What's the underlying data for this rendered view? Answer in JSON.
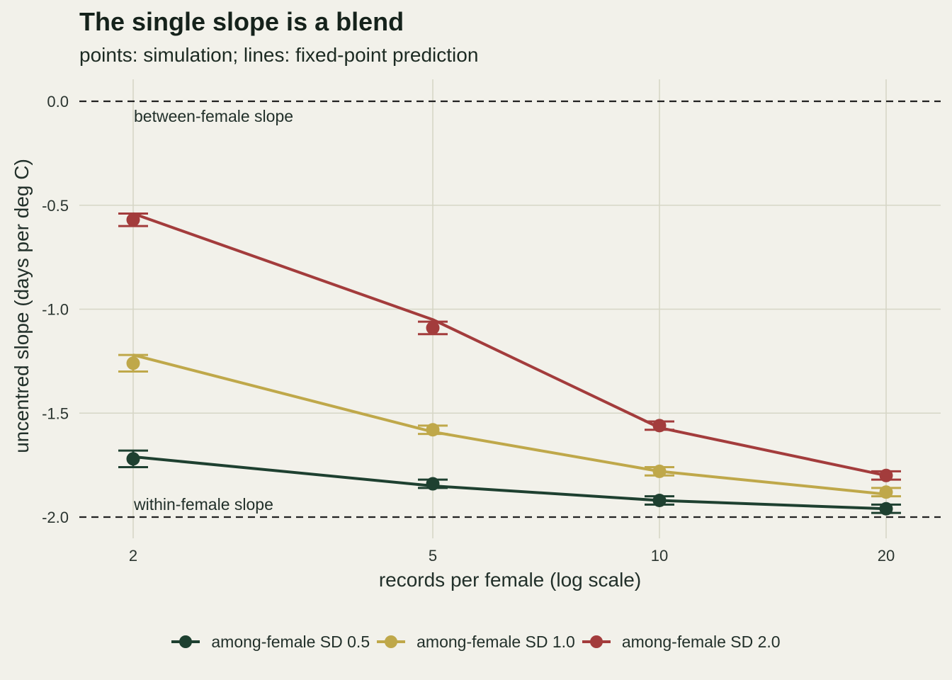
{
  "title": "The single slope is a blend",
  "subtitle": "points: simulation; lines: fixed-point prediction",
  "chart_data": {
    "type": "line",
    "xlabel": "records per female (log scale)",
    "ylabel": "uncentred slope (days per deg C)",
    "x_scale": "log",
    "x": [
      2,
      5,
      10,
      20
    ],
    "x_tick_labels": [
      "2",
      "5",
      "10",
      "20"
    ],
    "y_ticks": [
      0.0,
      -0.5,
      -1.0,
      -1.5,
      -2.0
    ],
    "y_tick_labels": [
      "0.0",
      "-0.5",
      "-1.0",
      "-1.5",
      "-2.0"
    ],
    "ylim": [
      -2.1,
      0.1
    ],
    "grid": true,
    "legend_position": "bottom",
    "reference_lines": [
      {
        "y": 0.0,
        "label": "between-female slope"
      },
      {
        "y": -2.0,
        "label": "within-female slope"
      }
    ],
    "series": [
      {
        "name": "among-female SD 0.5",
        "color": "#1e4030",
        "prediction": [
          -1.71,
          -1.85,
          -1.92,
          -1.96
        ],
        "simulation": [
          -1.72,
          -1.84,
          -1.92,
          -1.96
        ],
        "error": [
          0.04,
          0.02,
          0.02,
          0.02
        ]
      },
      {
        "name": "among-female SD 1.0",
        "color": "#bfa84a",
        "prediction": [
          -1.22,
          -1.59,
          -1.78,
          -1.89
        ],
        "simulation": [
          -1.26,
          -1.58,
          -1.78,
          -1.88
        ],
        "error": [
          0.04,
          0.02,
          0.02,
          0.02
        ]
      },
      {
        "name": "among-female SD 2.0",
        "color": "#a33c3c",
        "prediction": [
          -0.54,
          -1.05,
          -1.57,
          -1.8
        ],
        "simulation": [
          -0.57,
          -1.09,
          -1.56,
          -1.8
        ],
        "error": [
          0.03,
          0.03,
          0.02,
          0.02
        ]
      }
    ]
  }
}
